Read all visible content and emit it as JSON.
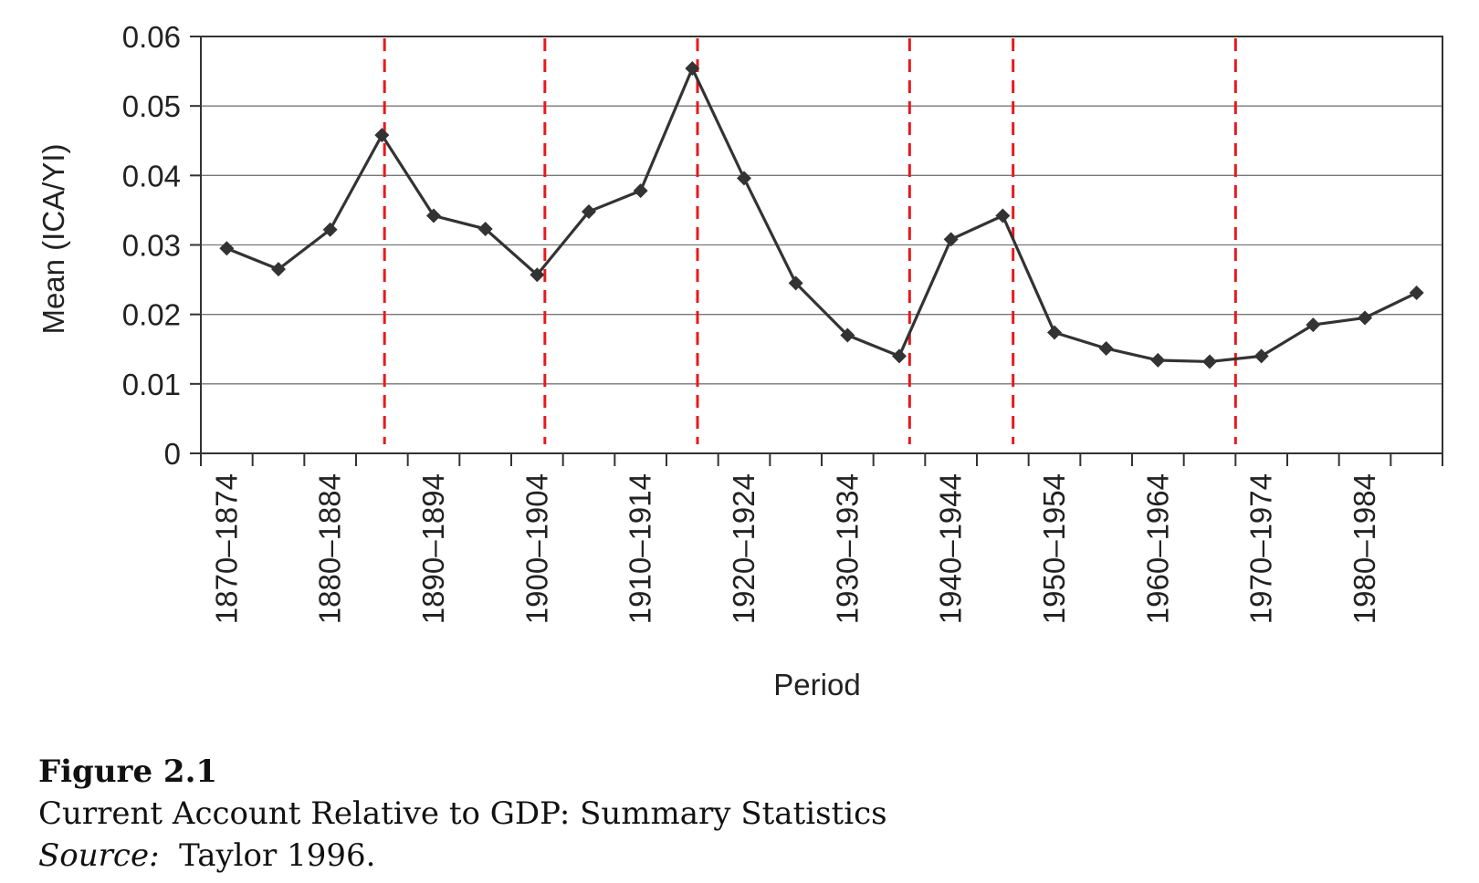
{
  "chart_data": {
    "type": "line",
    "xlabel": "Period",
    "ylabel": "Mean (ICA/YI)",
    "ylim": [
      0,
      0.06
    ],
    "yticks": [
      "0",
      "0.01",
      "0.02",
      "0.03",
      "0.04",
      "0.05",
      "0.06"
    ],
    "yticks_values": [
      0,
      0.01,
      0.02,
      0.03,
      0.04,
      0.05,
      0.06
    ],
    "xtick_labels": [
      "1870–1874",
      "1880–1884",
      "1890–1894",
      "1900–1904",
      "1910–1914",
      "1920–1924",
      "1930–1934",
      "1940–1944",
      "1950–1954",
      "1960–1964",
      "1970–1974",
      "1980–1984"
    ],
    "grid": "horizontal",
    "marker": "diamond",
    "line_color": "#333333",
    "vline_color": "#e8191c",
    "series": [
      {
        "x": [
          "1870–1874",
          "1875–1879",
          "1880–1884",
          "1885–1889",
          "1890–1894",
          "1895–1899",
          "1900–1904",
          "1905–1909",
          "1910–1914",
          "1915–1919",
          "1920–1924",
          "1925–1929",
          "1930–1934",
          "1935–1939",
          "1940–1944",
          "1945–1949",
          "1950–1954",
          "1955–1959",
          "1960–1964",
          "1965–1969",
          "1970–1974",
          "1975–1979",
          "1980–1984",
          "1985–1989"
        ],
        "values": [
          0.0295,
          0.0265,
          0.0322,
          0.0458,
          0.0342,
          0.0323,
          0.0257,
          0.0348,
          0.0378,
          0.0554,
          0.0396,
          0.0245,
          0.017,
          0.014,
          0.0308,
          0.0342,
          0.0174,
          0.0151,
          0.0134,
          0.0132,
          0.014,
          0.0185,
          0.0195,
          0.0231
        ]
      }
    ],
    "vertical_lines_at_period_index": [
      3.05,
      6.15,
      9.1,
      13.2,
      15.2,
      19.5
    ]
  },
  "caption": {
    "figure_label": "Figure 2.1",
    "title": "Current Account Relative to GDP: Summary Statistics",
    "source_label": "Source:",
    "source_text": "Taylor 1996."
  }
}
